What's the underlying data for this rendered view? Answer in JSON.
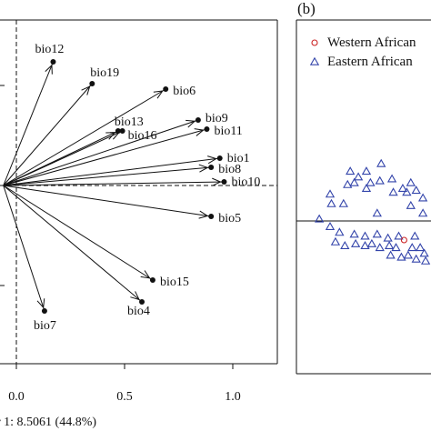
{
  "chart_data": [
    {
      "type": "biplot",
      "xlabel": "r 1: 8.5061 (44.8%)",
      "x_ticks": [
        "0.0",
        "0.5",
        "1.0"
      ],
      "x_tick_values": [
        0.0,
        0.5,
        1.0
      ],
      "xlim": [
        -0.07,
        1.1
      ],
      "ylim": [
        -0.85,
        0.85
      ],
      "grid": false,
      "vectors": [
        {
          "name": "bio12",
          "x": 0.17,
          "y": 0.68
        },
        {
          "name": "bio19",
          "x": 0.35,
          "y": 0.56
        },
        {
          "name": "bio6",
          "x": 0.69,
          "y": 0.53
        },
        {
          "name": "bio13",
          "x": 0.47,
          "y": 0.3
        },
        {
          "name": "bio16",
          "x": 0.49,
          "y": 0.3
        },
        {
          "name": "bio9",
          "x": 0.84,
          "y": 0.36
        },
        {
          "name": "bio11",
          "x": 0.88,
          "y": 0.31
        },
        {
          "name": "bio1",
          "x": 0.94,
          "y": 0.15
        },
        {
          "name": "bio8",
          "x": 0.9,
          "y": 0.1
        },
        {
          "name": "bio10",
          "x": 0.96,
          "y": 0.02
        },
        {
          "name": "bio5",
          "x": 0.9,
          "y": -0.17
        },
        {
          "name": "bio15",
          "x": 0.63,
          "y": -0.52
        },
        {
          "name": "bio4",
          "x": 0.58,
          "y": -0.64
        },
        {
          "name": "bio7",
          "x": 0.13,
          "y": -0.69
        }
      ]
    },
    {
      "type": "scatter",
      "panel_label": "(b)",
      "legend": {
        "placement": "top-left",
        "entries": [
          {
            "name": "Western African",
            "marker": "circle",
            "color": "#cc2222"
          },
          {
            "name": "Eastern African",
            "marker": "triangle",
            "color": "#3344aa"
          }
        ]
      },
      "xlim": [
        -1,
        1
      ],
      "ylim": [
        -1,
        1
      ],
      "series": [
        {
          "name": "Western African",
          "points": [
            {
              "x": 0.8,
              "y": -0.1
            }
          ]
        },
        {
          "name": "Eastern African",
          "points": [
            {
              "x": 0.63,
              "y": 0.3
            },
            {
              "x": 0.4,
              "y": 0.26
            },
            {
              "x": 0.52,
              "y": 0.26
            },
            {
              "x": 0.46,
              "y": 0.23
            },
            {
              "x": 0.38,
              "y": 0.19
            },
            {
              "x": 0.43,
              "y": 0.2
            },
            {
              "x": 0.55,
              "y": 0.2
            },
            {
              "x": 0.62,
              "y": 0.21
            },
            {
              "x": 0.71,
              "y": 0.22
            },
            {
              "x": 0.85,
              "y": 0.2
            },
            {
              "x": 0.79,
              "y": 0.17
            },
            {
              "x": 0.89,
              "y": 0.16
            },
            {
              "x": 0.52,
              "y": 0.17
            },
            {
              "x": 0.72,
              "y": 0.15
            },
            {
              "x": 0.82,
              "y": 0.15
            },
            {
              "x": 0.25,
              "y": 0.14
            },
            {
              "x": 0.26,
              "y": 0.09
            },
            {
              "x": 0.35,
              "y": 0.09
            },
            {
              "x": 0.85,
              "y": 0.08
            },
            {
              "x": 0.94,
              "y": 0.12
            },
            {
              "x": 0.6,
              "y": 0.04
            },
            {
              "x": 0.94,
              "y": 0.04
            },
            {
              "x": 0.25,
              "y": -0.03
            },
            {
              "x": 0.17,
              "y": 0.01
            },
            {
              "x": 0.32,
              "y": -0.06
            },
            {
              "x": 0.43,
              "y": -0.07
            },
            {
              "x": 0.51,
              "y": -0.08
            },
            {
              "x": 0.6,
              "y": -0.07
            },
            {
              "x": 0.68,
              "y": -0.09
            },
            {
              "x": 0.76,
              "y": -0.08
            },
            {
              "x": 0.88,
              "y": -0.08
            },
            {
              "x": 0.29,
              "y": -0.11
            },
            {
              "x": 0.36,
              "y": -0.13
            },
            {
              "x": 0.44,
              "y": -0.12
            },
            {
              "x": 0.51,
              "y": -0.13
            },
            {
              "x": 0.56,
              "y": -0.12
            },
            {
              "x": 0.62,
              "y": -0.14
            },
            {
              "x": 0.69,
              "y": -0.13
            },
            {
              "x": 0.74,
              "y": -0.14
            },
            {
              "x": 0.86,
              "y": -0.14
            },
            {
              "x": 0.92,
              "y": -0.14
            },
            {
              "x": 0.95,
              "y": -0.17
            },
            {
              "x": 0.83,
              "y": -0.18
            },
            {
              "x": 0.78,
              "y": -0.19
            },
            {
              "x": 0.7,
              "y": -0.18
            },
            {
              "x": 0.89,
              "y": -0.2
            },
            {
              "x": 0.96,
              "y": -0.21
            }
          ]
        }
      ]
    }
  ]
}
